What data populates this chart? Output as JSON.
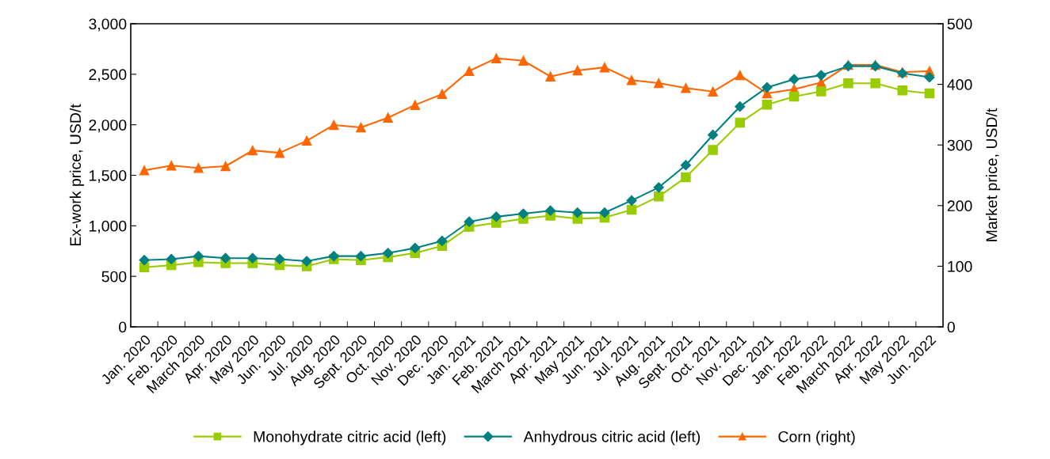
{
  "chart_data": {
    "type": "line",
    "categories": [
      "Jan. 2020",
      "Feb. 2020",
      "March 2020",
      "Apr. 2020",
      "May 2020",
      "Jun. 2020",
      "Jul. 2020",
      "Aug. 2020",
      "Sept. 2020",
      "Oct. 2020",
      "Nov. 2020",
      "Dec. 2020",
      "Jan. 2021",
      "Feb. 2021",
      "March 2021",
      "Apr. 2021",
      "May 2021",
      "Jun. 2021",
      "Jul. 2021",
      "Aug. 2021",
      "Sept. 2021",
      "Oct. 2021",
      "Nov. 2021",
      "Dec. 2021",
      "Jan. 2022",
      "Feb. 2022",
      "March 2022",
      "Apr. 2022",
      "May 2022",
      "Jun. 2022"
    ],
    "series": [
      {
        "name": "Monohydrate citric acid (left)",
        "color": "#99cc00",
        "marker": "square",
        "values": [
          590,
          610,
          640,
          630,
          630,
          610,
          600,
          670,
          660,
          690,
          730,
          800,
          990,
          1030,
          1070,
          1100,
          1070,
          1080,
          1160,
          1290,
          1480,
          1750,
          2020,
          2200,
          2280,
          2330,
          2410,
          2410,
          2340,
          2310
        ]
      },
      {
        "name": "Anhydrous citric acid (left)",
        "color": "#008080",
        "marker": "diamond",
        "values": [
          660,
          670,
          700,
          680,
          680,
          670,
          650,
          700,
          700,
          730,
          780,
          850,
          1040,
          1090,
          1120,
          1150,
          1130,
          1130,
          1250,
          1380,
          1600,
          1900,
          2180,
          2370,
          2450,
          2490,
          2580,
          2580,
          2510,
          2470
        ]
      },
      {
        "name": "Corn (right)",
        "color": "#ff6600",
        "marker": "triangle",
        "axis": "y2",
        "values": [
          258,
          266,
          262,
          265,
          291,
          287,
          307,
          333,
          329,
          345,
          366,
          384,
          422,
          443,
          439,
          413,
          423,
          428,
          407,
          402,
          394,
          388,
          415,
          385,
          392,
          403,
          432,
          432,
          420,
          422
        ]
      }
    ],
    "ylabel": "Ex-work price, USD/t",
    "y2label": "Market price, USD/t",
    "ylim": [
      0,
      3000
    ],
    "yticks": [
      {
        "value": 0,
        "label": "0"
      },
      {
        "value": 500,
        "label": "500"
      },
      {
        "value": 1000,
        "label": "1,000"
      },
      {
        "value": 1500,
        "label": "1,500"
      },
      {
        "value": 2000,
        "label": "2,000"
      },
      {
        "value": 2500,
        "label": "2,500"
      },
      {
        "value": 3000,
        "label": "3,000"
      }
    ],
    "y2lim": [
      0,
      500
    ],
    "y2ticks": [
      0,
      100,
      200,
      300,
      400,
      500
    ],
    "grid": false,
    "legend": "bottom",
    "line_style": "solid"
  }
}
